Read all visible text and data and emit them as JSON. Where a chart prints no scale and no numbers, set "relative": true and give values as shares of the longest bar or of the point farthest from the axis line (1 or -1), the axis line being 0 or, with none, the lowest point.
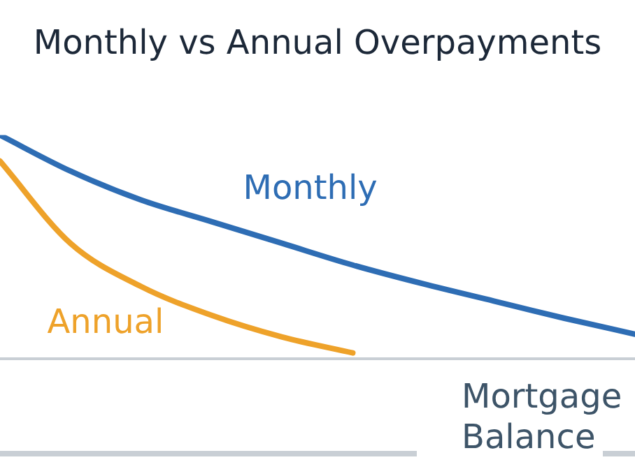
{
  "chart_data": {
    "type": "line",
    "title": "Monthly vs Annual Overpayments",
    "relative": true,
    "categories": [
      null,
      null,
      null,
      null,
      null,
      null,
      null,
      null,
      null,
      null
    ],
    "series": [
      {
        "name": "Monthly",
        "color": "#2e6db4",
        "values": [
          1,
          0.839,
          0.71,
          0.613,
          0.516,
          0.419,
          0.335,
          0.258,
          0.181,
          0.11
        ]
      },
      {
        "name": "Annual",
        "color": "#eea22a",
        "values": [
          0.884,
          0.516,
          0.323,
          0.194,
          0.097,
          0.026,
          null,
          null,
          null,
          null
        ]
      }
    ],
    "annotations": [
      "Mortgage Balance"
    ],
    "marker": "none",
    "line_style": "solid",
    "legend": false,
    "grid": false
  }
}
